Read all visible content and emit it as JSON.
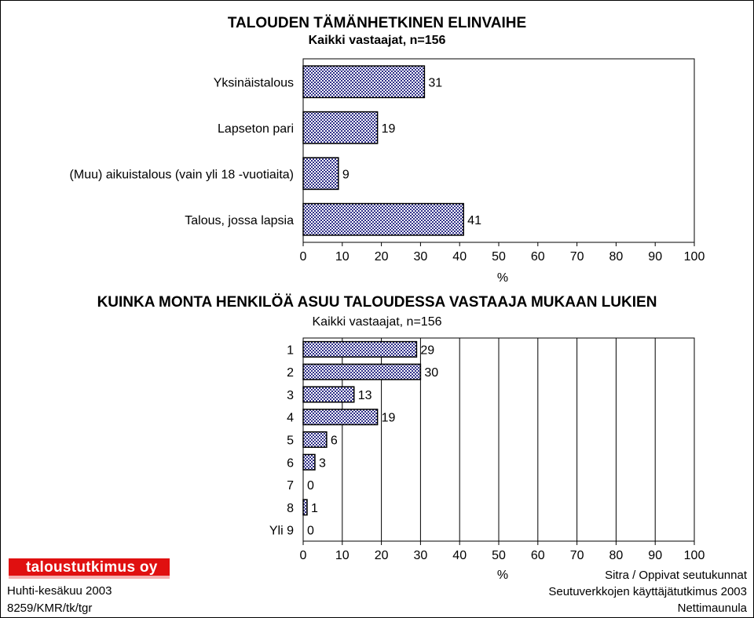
{
  "chart_data": [
    {
      "type": "bar",
      "orientation": "horizontal",
      "title": "TALOUDEN TÄMÄNHETKINEN ELINVAIHE",
      "subtitle": "Kaikki vastaajat, n=156",
      "categories": [
        "Yksinäistalous",
        "Lapseton pari",
        "(Muu) aikuistalous (vain yli 18 -vuotiaita)",
        "Talous, jossa lapsia"
      ],
      "values": [
        31,
        19,
        9,
        41
      ],
      "value_labels": [
        "31",
        "19",
        "9",
        "41"
      ],
      "xlabel": "%",
      "xlim": [
        0,
        100
      ],
      "xticks": [
        "0",
        "10",
        "20",
        "30",
        "40",
        "50",
        "60",
        "70",
        "80",
        "90",
        "100"
      ],
      "grid": false
    },
    {
      "type": "bar",
      "orientation": "horizontal",
      "title": "KUINKA MONTA HENKILÖÄ ASUU TALOUDESSA VASTAAJA MUKAAN LUKIEN",
      "subtitle": "Kaikki vastaajat, n=156",
      "categories": [
        "1",
        "2",
        "3",
        "4",
        "5",
        "6",
        "7",
        "8",
        "Yli 9"
      ],
      "values": [
        29,
        30,
        13,
        19,
        6,
        3,
        0,
        1,
        0
      ],
      "value_labels": [
        "29",
        "30",
        "13",
        "19",
        "6",
        "3",
        "0",
        "1",
        "0"
      ],
      "xlabel": "%",
      "xlim": [
        0,
        100
      ],
      "xticks": [
        "0",
        "10",
        "20",
        "30",
        "40",
        "50",
        "60",
        "70",
        "80",
        "90",
        "100"
      ],
      "grid": true
    }
  ],
  "colors": {
    "bar_fill": "#2f2f88",
    "bar_fill_light": "#ffffff",
    "logo_red": "#e01010"
  },
  "logo": {
    "text": "taloustutkimus oy"
  },
  "footer": {
    "left_line1": "Huhti-kesäkuu 2003",
    "left_line2": "8259/KMR/tk/tgr",
    "right_line1": "Sitra / Oppivat seutukunnat",
    "right_line2": "Seutuverkkojen käyttäjätutkimus 2003",
    "right_line3": "Nettimaunula"
  }
}
